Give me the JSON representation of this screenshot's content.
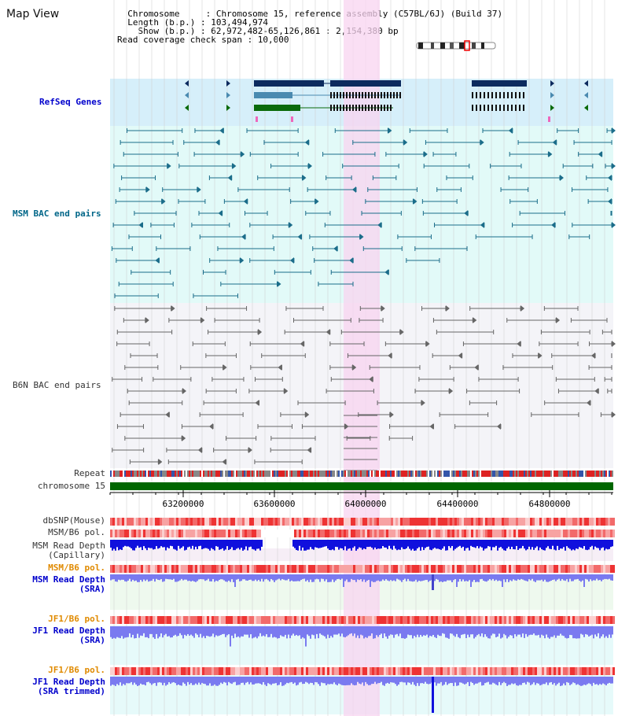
{
  "title": "Map View",
  "info": {
    "line1": "  Chromosome     : Chromosome 15, reference assembly (C57BL/6J) (Build 37)",
    "line2": "  Length (b.p.) : 103,494,974",
    "line3": "    Show (b.p.) : 62,972,482-65,126,861 : 2,154,380 bp",
    "line4": "Read coverage check span : 10,000"
  },
  "tracks": {
    "refseq": "RefSeq Genes",
    "msm_bac": "MSM BAC end pairs",
    "b6n_bac": "B6N BAC end pairs",
    "repeat": "Repeat",
    "chromosome": "chromosome 15",
    "dbsnp": "dbSNP(Mouse)",
    "msm_pol": "MSM/B6 pol.",
    "msm_depth_cap_1": "MSM Read Depth",
    "msm_depth_cap_2": "(Capillary)",
    "msm_pol_sra": "MSM/B6 pol.",
    "msm_depth_sra_1": "MSM Read Depth",
    "msm_depth_sra_2": "(SRA)",
    "jf1_pol_1": "JF1/B6 pol.",
    "jf1_depth_1": "JF1 Read Depth",
    "jf1_depth_1b": "(SRA)",
    "jf1_pol_2": "JF1/B6 pol.",
    "jf1_depth_2": "JF1 Read Depth",
    "jf1_depth_2b": "(SRA trimmed)"
  },
  "axis": {
    "ticks": [
      "63200000",
      "63600000",
      "64000000",
      "64400000",
      "64800000"
    ]
  },
  "colors": {
    "refseq_bg": "#d6effa",
    "msm_bg": "#e2faf8",
    "b6n_bg": "#f4f4f8",
    "highlight": "#f8d4f0",
    "chrom_bar": "#006600",
    "depth_blue": "#1010dd",
    "depth_light": "#7a7af0",
    "pol_red": "#ee3333",
    "msm_feature": "#1b6d8a",
    "b6n_feature": "#666666",
    "gene_navy": "#0c2a5e",
    "gene_steel": "#4a8ab0",
    "gene_green": "#0a6a0a"
  }
}
